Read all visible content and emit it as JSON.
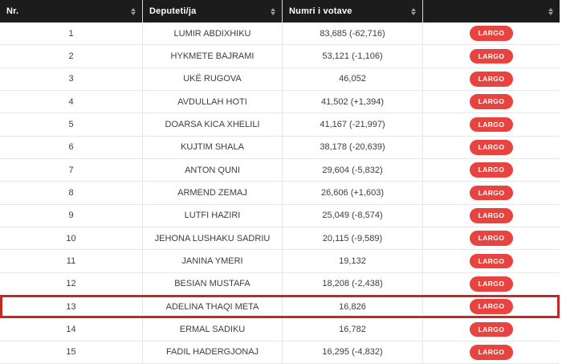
{
  "table": {
    "columns": [
      {
        "label": "Nr."
      },
      {
        "label": "Deputeti/ja"
      },
      {
        "label": "Numri i votave"
      },
      {
        "label": ""
      }
    ],
    "action_label": "LARGO",
    "rows": [
      {
        "nr": "1",
        "name": "LUMIR ABDIXHIKU",
        "votes": "83,685 (-62,716)",
        "highlighted": false
      },
      {
        "nr": "2",
        "name": "HYKMETE BAJRAMI",
        "votes": "53,121 (-1,106)",
        "highlighted": false
      },
      {
        "nr": "3",
        "name": "UKË RUGOVA",
        "votes": "46,052",
        "highlighted": false
      },
      {
        "nr": "4",
        "name": "AVDULLAH HOTI",
        "votes": "41,502 (+1,394)",
        "highlighted": false
      },
      {
        "nr": "5",
        "name": "DOARSA KICA XHELILI",
        "votes": "41,167 (-21,997)",
        "highlighted": false
      },
      {
        "nr": "6",
        "name": "KUJTIM SHALA",
        "votes": "38,178 (-20,639)",
        "highlighted": false
      },
      {
        "nr": "7",
        "name": "ANTON QUNI",
        "votes": "29,604 (-5,832)",
        "highlighted": false
      },
      {
        "nr": "8",
        "name": "ARMEND ZEMAJ",
        "votes": "26,606 (+1,603)",
        "highlighted": false
      },
      {
        "nr": "9",
        "name": "LUTFI HAZIRI",
        "votes": "25,049 (-8,574)",
        "highlighted": false
      },
      {
        "nr": "10",
        "name": "JEHONA LUSHAKU SADRIU",
        "votes": "20,115 (-9,589)",
        "highlighted": false
      },
      {
        "nr": "11",
        "name": "JANINA YMERI",
        "votes": "19,132",
        "highlighted": false
      },
      {
        "nr": "12",
        "name": "BESIAN MUSTAFA",
        "votes": "18,208 (-2,438)",
        "highlighted": false
      },
      {
        "nr": "13",
        "name": "ADELINA THAQI META",
        "votes": "16,826",
        "highlighted": true
      },
      {
        "nr": "14",
        "name": "ERMAL SADIKU",
        "votes": "16,782",
        "highlighted": false
      },
      {
        "nr": "15",
        "name": "FADIL HADERGJONAJ",
        "votes": "16,295 (-4,832)",
        "highlighted": false
      }
    ],
    "colors": {
      "header_bg": "#1c1c1c",
      "header_text": "#ffffff",
      "button_bg": "#e8433e",
      "button_text": "#ffffff",
      "highlight_border": "#c22a27",
      "grid_line": "#e7e7e7",
      "body_text": "#3d3d3d",
      "sort_icon": "#9a9a9a"
    }
  }
}
